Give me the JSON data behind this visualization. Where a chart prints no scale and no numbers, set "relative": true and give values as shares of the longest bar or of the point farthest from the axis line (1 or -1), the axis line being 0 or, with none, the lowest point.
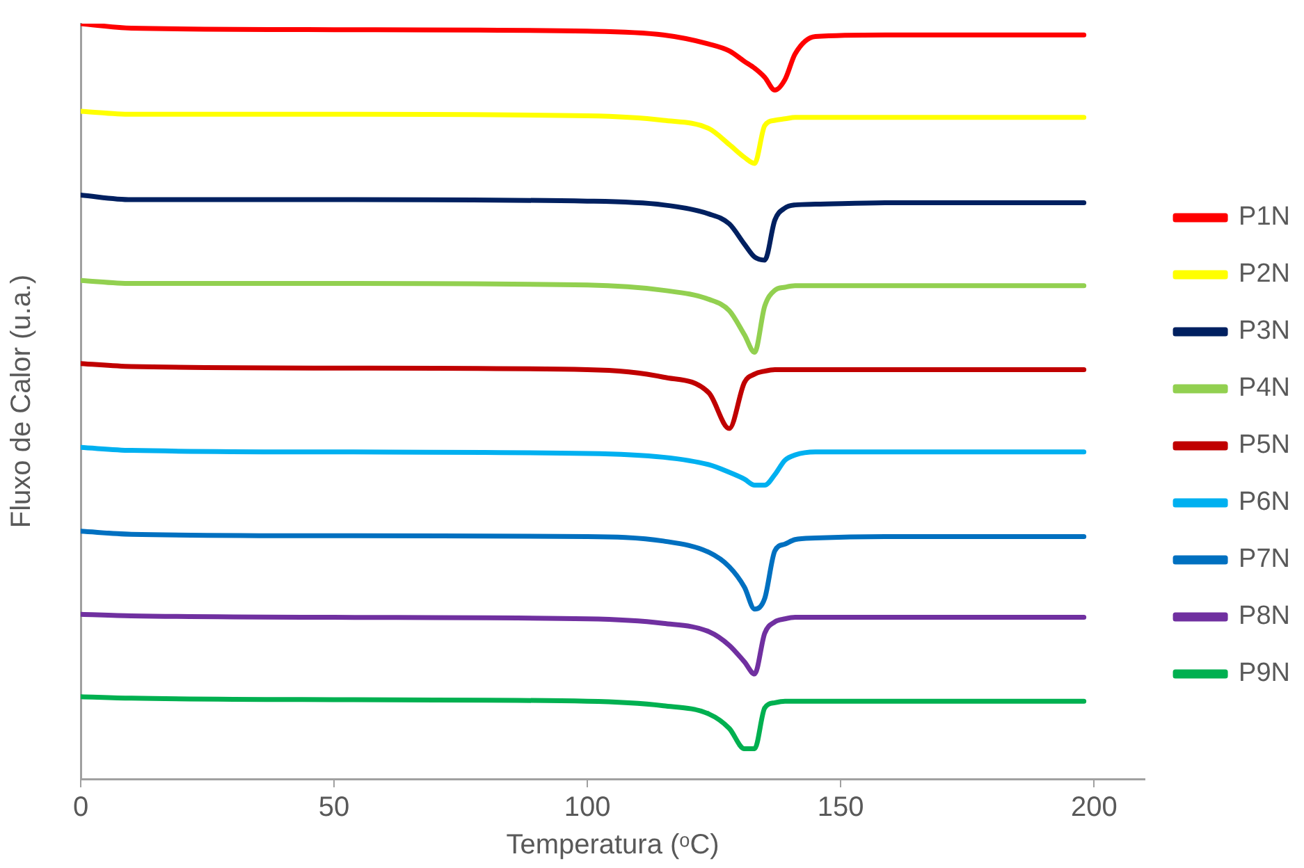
{
  "chart_data": {
    "type": "line",
    "xlabel": "Temperatura (ᵒC)",
    "ylabel": "Fluxo de Calor (u.a.)",
    "relative": true,
    "x": [
      0,
      10,
      50,
      100,
      115,
      124,
      128,
      131,
      133,
      135,
      137,
      139,
      141,
      145,
      160,
      198
    ],
    "xlim": [
      0,
      210
    ],
    "xticks": [
      0,
      50,
      100,
      150,
      200
    ],
    "grid": false,
    "legend": "right",
    "marker": "none",
    "line_style": "solid",
    "series": [
      {
        "name": "P1N",
        "color": "#ff0000",
        "values": [
          1.0,
          0.994,
          0.992,
          0.99,
          0.985,
          0.973,
          0.964,
          0.95,
          0.941,
          0.929,
          0.912,
          0.926,
          0.96,
          0.983,
          0.985,
          0.985
        ]
      },
      {
        "name": "P2N",
        "color": "#ffff00",
        "values": [
          0.884,
          0.88,
          0.88,
          0.878,
          0.872,
          0.861,
          0.84,
          0.823,
          0.815,
          0.865,
          0.872,
          0.874,
          0.876,
          0.876,
          0.876,
          0.876
        ]
      },
      {
        "name": "P3N",
        "color": "#002060",
        "values": [
          0.773,
          0.767,
          0.767,
          0.765,
          0.76,
          0.748,
          0.735,
          0.708,
          0.691,
          0.687,
          0.74,
          0.756,
          0.76,
          0.761,
          0.763,
          0.763
        ]
      },
      {
        "name": "P4N",
        "color": "#92d050",
        "values": [
          0.66,
          0.656,
          0.656,
          0.654,
          0.647,
          0.635,
          0.62,
          0.588,
          0.565,
          0.626,
          0.647,
          0.651,
          0.653,
          0.653,
          0.653,
          0.653
        ]
      },
      {
        "name": "P5N",
        "color": "#c00000",
        "values": [
          0.55,
          0.546,
          0.544,
          0.542,
          0.532,
          0.511,
          0.464,
          0.525,
          0.536,
          0.54,
          0.542,
          0.542,
          0.542,
          0.542,
          0.542,
          0.542
        ]
      },
      {
        "name": "P6N",
        "color": "#00b0f0",
        "values": [
          0.439,
          0.435,
          0.433,
          0.431,
          0.426,
          0.416,
          0.406,
          0.397,
          0.389,
          0.389,
          0.403,
          0.422,
          0.429,
          0.433,
          0.433,
          0.433
        ]
      },
      {
        "name": "P7N",
        "color": "#0070c0",
        "values": [
          0.328,
          0.324,
          0.322,
          0.321,
          0.315,
          0.3,
          0.281,
          0.254,
          0.225,
          0.239,
          0.302,
          0.311,
          0.317,
          0.319,
          0.321,
          0.321
        ]
      },
      {
        "name": "P8N",
        "color": "#7030a0",
        "values": [
          0.218,
          0.216,
          0.214,
          0.212,
          0.206,
          0.195,
          0.177,
          0.155,
          0.139,
          0.193,
          0.208,
          0.212,
          0.214,
          0.214,
          0.214,
          0.214
        ]
      },
      {
        "name": "P9N",
        "color": "#00b050",
        "values": [
          0.109,
          0.107,
          0.105,
          0.103,
          0.097,
          0.086,
          0.067,
          0.04,
          0.04,
          0.094,
          0.101,
          0.103,
          0.103,
          0.103,
          0.103,
          0.103
        ]
      }
    ]
  }
}
